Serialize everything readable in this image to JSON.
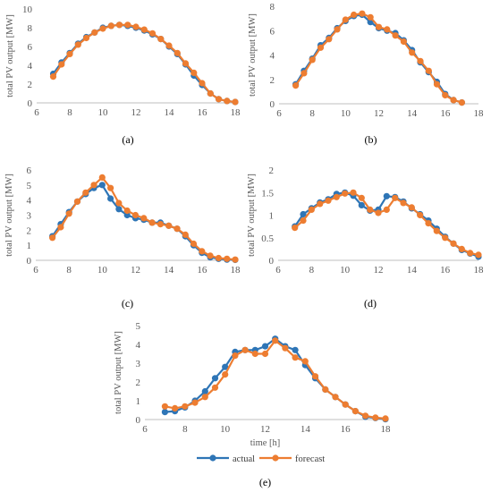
{
  "colors": {
    "actual": "#2E75B6",
    "forecast": "#ED7D31",
    "axis": "#BFBFBF",
    "grid": "#D9D9D9"
  },
  "chart_data": [
    {
      "type": "line",
      "caption": "(a)",
      "ylabel": "total PV output [MW]",
      "xlabel": "",
      "xlim": [
        6,
        18
      ],
      "xticks": [
        6,
        8,
        10,
        12,
        14,
        16,
        18
      ],
      "ylim": [
        0,
        10
      ],
      "yticks": [
        0,
        2,
        4,
        6,
        8,
        10
      ],
      "grid": false,
      "series": [
        {
          "name": "actual",
          "x": [
            7,
            7.5,
            8,
            8.5,
            9,
            9.5,
            10,
            10.5,
            11,
            11.5,
            12,
            12.5,
            13,
            13.5,
            14,
            14.5,
            15,
            15.5,
            16,
            16.5,
            17,
            17.5,
            18
          ],
          "y": [
            3.1,
            4.3,
            5.3,
            6.3,
            7.0,
            7.5,
            8.0,
            8.2,
            8.3,
            8.2,
            8.0,
            7.7,
            7.3,
            6.8,
            6.0,
            5.2,
            4.1,
            2.9,
            1.9,
            1.0,
            0.4,
            0.2,
            0.1
          ]
        },
        {
          "name": "forecast",
          "x": [
            7,
            7.5,
            8,
            8.5,
            9,
            9.5,
            10,
            10.5,
            11,
            11.5,
            12,
            12.5,
            13,
            13.5,
            14,
            14.5,
            15,
            15.5,
            16,
            16.5,
            17,
            17.5,
            18
          ],
          "y": [
            2.8,
            4.1,
            5.2,
            6.2,
            6.9,
            7.5,
            7.9,
            8.2,
            8.3,
            8.3,
            8.1,
            7.8,
            7.4,
            6.8,
            6.1,
            5.3,
            4.2,
            3.2,
            2.1,
            1.0,
            0.4,
            0.2,
            0.1
          ]
        }
      ]
    },
    {
      "type": "line",
      "caption": "(b)",
      "ylabel": "total PV output [MW]",
      "xlabel": "",
      "xlim": [
        6,
        18
      ],
      "xticks": [
        6,
        8,
        10,
        12,
        14,
        16,
        18
      ],
      "ylim": [
        0,
        8
      ],
      "yticks": [
        0,
        2,
        4,
        6,
        8
      ],
      "grid": false,
      "series": [
        {
          "name": "actual",
          "x": [
            7,
            7.5,
            8,
            8.5,
            9,
            9.5,
            10,
            10.5,
            11,
            11.5,
            12,
            12.5,
            13,
            13.5,
            14,
            14.5,
            15,
            15.5,
            16,
            16.5,
            17
          ],
          "y": [
            1.6,
            2.7,
            3.7,
            4.8,
            5.4,
            6.2,
            6.8,
            7.2,
            7.3,
            6.7,
            6.2,
            6.0,
            5.8,
            5.2,
            4.4,
            3.4,
            2.6,
            1.8,
            0.8,
            0.3,
            0.1
          ]
        },
        {
          "name": "forecast",
          "x": [
            7,
            7.5,
            8,
            8.5,
            9,
            9.5,
            10,
            10.5,
            11,
            11.5,
            12,
            12.5,
            13,
            13.5,
            14,
            14.5,
            15,
            15.5,
            16,
            16.5,
            17
          ],
          "y": [
            1.5,
            2.5,
            3.6,
            4.6,
            5.3,
            6.1,
            6.9,
            7.3,
            7.4,
            7.1,
            6.3,
            6.1,
            5.6,
            5.1,
            4.2,
            3.5,
            2.7,
            1.6,
            0.7,
            0.3,
            0.1
          ]
        }
      ]
    },
    {
      "type": "line",
      "caption": "(c)",
      "ylabel": "total PV output [MW]",
      "xlabel": "",
      "xlim": [
        6,
        18
      ],
      "xticks": [
        6,
        8,
        10,
        12,
        14,
        16,
        18
      ],
      "ylim": [
        0,
        6
      ],
      "yticks": [
        0,
        1,
        2,
        3,
        4,
        5,
        6
      ],
      "grid": false,
      "series": [
        {
          "name": "actual",
          "x": [
            7,
            7.5,
            8,
            8.5,
            9,
            9.5,
            10,
            10.5,
            11,
            11.5,
            12,
            12.5,
            13,
            13.5,
            14,
            14.5,
            15,
            15.5,
            16,
            16.5,
            17,
            17.5,
            18
          ],
          "y": [
            1.6,
            2.4,
            3.2,
            3.9,
            4.4,
            4.8,
            5.0,
            4.1,
            3.4,
            3.0,
            2.8,
            2.7,
            2.5,
            2.5,
            2.3,
            2.1,
            1.6,
            1.0,
            0.5,
            0.2,
            0.1,
            0.05,
            0.03
          ]
        },
        {
          "name": "forecast",
          "x": [
            7,
            7.5,
            8,
            8.5,
            9,
            9.5,
            10,
            10.5,
            11,
            11.5,
            12,
            12.5,
            13,
            13.5,
            14,
            14.5,
            15,
            15.5,
            16,
            16.5,
            17,
            17.5,
            18
          ],
          "y": [
            1.5,
            2.2,
            3.1,
            3.9,
            4.5,
            5.0,
            5.5,
            4.8,
            3.8,
            3.3,
            3.0,
            2.8,
            2.5,
            2.4,
            2.3,
            2.1,
            1.7,
            1.1,
            0.6,
            0.3,
            0.15,
            0.1,
            0.05
          ]
        }
      ]
    },
    {
      "type": "line",
      "caption": "(d)",
      "ylabel": "total PV output [MW]",
      "xlabel": "",
      "xlim": [
        6,
        18
      ],
      "xticks": [
        6,
        8,
        10,
        12,
        14,
        16,
        18
      ],
      "ylim": [
        0,
        2
      ],
      "yticks": [
        0,
        0.5,
        1,
        1.5,
        2
      ],
      "grid": false,
      "series": [
        {
          "name": "actual",
          "x": [
            7,
            7.5,
            8,
            8.5,
            9,
            9.5,
            10,
            10.5,
            11,
            11.5,
            12,
            12.5,
            13,
            13.5,
            14,
            14.5,
            15,
            15.5,
            16,
            16.5,
            17,
            17.5,
            18
          ],
          "y": [
            0.75,
            1.02,
            1.15,
            1.28,
            1.35,
            1.47,
            1.5,
            1.43,
            1.22,
            1.1,
            1.12,
            1.42,
            1.4,
            1.3,
            1.15,
            1.02,
            0.88,
            0.7,
            0.52,
            0.37,
            0.23,
            0.15,
            0.08
          ]
        },
        {
          "name": "forecast",
          "x": [
            7,
            7.5,
            8,
            8.5,
            9,
            9.5,
            10,
            10.5,
            11,
            11.5,
            12,
            12.5,
            13,
            13.5,
            14,
            14.5,
            15,
            15.5,
            16,
            16.5,
            17,
            17.5,
            18
          ],
          "y": [
            0.72,
            0.88,
            1.12,
            1.25,
            1.32,
            1.4,
            1.48,
            1.5,
            1.38,
            1.12,
            1.05,
            1.12,
            1.38,
            1.27,
            1.17,
            1.0,
            0.82,
            0.65,
            0.5,
            0.37,
            0.25,
            0.16,
            0.12
          ]
        }
      ]
    },
    {
      "type": "line",
      "caption": "(e)",
      "ylabel": "total PV output [MW]",
      "xlabel": "time [h]",
      "xlim": [
        6,
        18
      ],
      "xticks": [
        6,
        8,
        10,
        12,
        14,
        16,
        18
      ],
      "ylim": [
        0,
        5
      ],
      "yticks": [
        0,
        1,
        2,
        3,
        4,
        5
      ],
      "grid": false,
      "legend": "bottom",
      "series": [
        {
          "name": "actual",
          "x": [
            7,
            7.5,
            8,
            8.5,
            9,
            9.5,
            10,
            10.5,
            11,
            11.5,
            12,
            12.5,
            13,
            13.5,
            14,
            14.5,
            15,
            15.5,
            16,
            16.5,
            17,
            17.5,
            18
          ],
          "y": [
            0.4,
            0.45,
            0.65,
            1.0,
            1.5,
            2.2,
            2.8,
            3.6,
            3.7,
            3.7,
            3.9,
            4.3,
            3.9,
            3.7,
            2.9,
            2.2,
            1.6,
            1.2,
            0.8,
            0.45,
            0.15,
            0.08,
            0.02
          ]
        },
        {
          "name": "forecast",
          "x": [
            7,
            7.5,
            8,
            8.5,
            9,
            9.5,
            10,
            10.5,
            11,
            11.5,
            12,
            12.5,
            13,
            13.5,
            14,
            14.5,
            15,
            15.5,
            16,
            16.5,
            17,
            17.5,
            18
          ],
          "y": [
            0.7,
            0.6,
            0.7,
            0.9,
            1.2,
            1.7,
            2.4,
            3.4,
            3.7,
            3.5,
            3.5,
            4.2,
            3.8,
            3.3,
            3.1,
            2.3,
            1.6,
            1.2,
            0.8,
            0.45,
            0.2,
            0.1,
            0.05
          ]
        }
      ]
    }
  ],
  "legend": {
    "items": [
      "actual",
      "forecast"
    ]
  }
}
